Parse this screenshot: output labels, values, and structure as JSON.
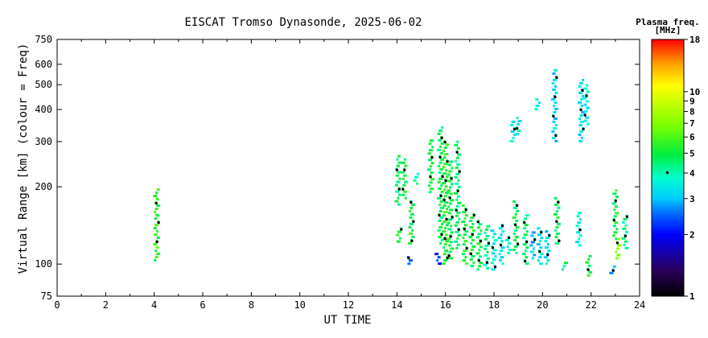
{
  "chart_data": {
    "type": "scatter",
    "title": "EISCAT Tromso Dynasonde, 2025-06-02",
    "xlabel": "UT TIME",
    "ylabel": "Virtual Range [km] (colour = Freq)",
    "xlim": [
      0,
      24
    ],
    "ylim": [
      75,
      750
    ],
    "yscale": "log",
    "x_ticks": [
      0,
      2,
      4,
      6,
      8,
      10,
      12,
      14,
      16,
      18,
      20,
      22,
      24
    ],
    "y_ticks": [
      75,
      100,
      200,
      300,
      400,
      500,
      600,
      750
    ],
    "colorbar": {
      "label": "Plasma freq.",
      "unit": "[MHz]",
      "scale": "log",
      "range": [
        1,
        18
      ],
      "ticks": [
        1,
        2,
        3,
        4,
        5,
        6,
        7,
        8,
        9,
        10,
        18
      ]
    },
    "series": [
      {
        "points": [
          {
            "x": 4.1,
            "y_min": 103,
            "y_max": 195,
            "f": 5.5
          },
          {
            "x": 14.05,
            "y_min": 170,
            "y_max": 265,
            "f": 4.6
          },
          {
            "x": 14.1,
            "y_min": 122,
            "y_max": 138,
            "f": 5.2
          },
          {
            "x": 14.3,
            "y_min": 180,
            "y_max": 260,
            "f": 5.0
          },
          {
            "x": 14.5,
            "y_min": 100,
            "y_max": 108,
            "f": 2.5
          },
          {
            "x": 14.6,
            "y_min": 120,
            "y_max": 175,
            "f": 5.0
          },
          {
            "x": 14.8,
            "y_min": 205,
            "y_max": 225,
            "f": 4.0
          },
          {
            "x": 15.4,
            "y_min": 190,
            "y_max": 310,
            "f": 5.0
          },
          {
            "x": 15.7,
            "y_min": 100,
            "y_max": 110,
            "f": 2.2
          },
          {
            "x": 15.8,
            "y_min": 120,
            "y_max": 340,
            "f": 4.8
          },
          {
            "x": 16.0,
            "y_min": 100,
            "y_max": 300,
            "f": 5.3
          },
          {
            "x": 16.2,
            "y_min": 105,
            "y_max": 250,
            "f": 5.0
          },
          {
            "x": 16.5,
            "y_min": 115,
            "y_max": 300,
            "f": 4.5
          },
          {
            "x": 16.8,
            "y_min": 100,
            "y_max": 170,
            "f": 5.2
          },
          {
            "x": 17.1,
            "y_min": 98,
            "y_max": 160,
            "f": 5.0
          },
          {
            "x": 17.4,
            "y_min": 95,
            "y_max": 150,
            "f": 4.8
          },
          {
            "x": 17.7,
            "y_min": 96,
            "y_max": 140,
            "f": 4.3
          },
          {
            "x": 18.0,
            "y_min": 95,
            "y_max": 135,
            "f": 3.5
          },
          {
            "x": 18.3,
            "y_min": 100,
            "y_max": 145,
            "f": 3.4
          },
          {
            "x": 18.6,
            "y_min": 110,
            "y_max": 130,
            "f": 3.6
          },
          {
            "x": 18.8,
            "y_min": 300,
            "y_max": 360,
            "f": 3.5
          },
          {
            "x": 18.9,
            "y_min": 110,
            "y_max": 175,
            "f": 4.8
          },
          {
            "x": 19.0,
            "y_min": 320,
            "y_max": 380,
            "f": 3.6
          },
          {
            "x": 19.3,
            "y_min": 100,
            "y_max": 155,
            "f": 4.5
          },
          {
            "x": 19.6,
            "y_min": 105,
            "y_max": 135,
            "f": 3.0
          },
          {
            "x": 19.8,
            "y_min": 400,
            "y_max": 440,
            "f": 3.6
          },
          {
            "x": 19.9,
            "y_min": 100,
            "y_max": 140,
            "f": 3.3
          },
          {
            "x": 20.2,
            "y_min": 100,
            "y_max": 135,
            "f": 3.2
          },
          {
            "x": 20.5,
            "y_min": 300,
            "y_max": 580,
            "f": 3.2
          },
          {
            "x": 20.6,
            "y_min": 120,
            "y_max": 185,
            "f": 4.8
          },
          {
            "x": 20.9,
            "y_min": 95,
            "y_max": 102,
            "f": 4.5
          },
          {
            "x": 21.5,
            "y_min": 118,
            "y_max": 160,
            "f": 3.5
          },
          {
            "x": 21.6,
            "y_min": 300,
            "y_max": 520,
            "f": 3.3
          },
          {
            "x": 21.8,
            "y_min": 350,
            "y_max": 500,
            "f": 3.5
          },
          {
            "x": 21.9,
            "y_min": 90,
            "y_max": 110,
            "f": 5.0
          },
          {
            "x": 22.9,
            "y_min": 92,
            "y_max": 98,
            "f": 3.0
          },
          {
            "x": 23.0,
            "y_min": 125,
            "y_max": 195,
            "f": 5.0
          },
          {
            "x": 23.1,
            "y_min": 105,
            "y_max": 125,
            "f": 7.5
          },
          {
            "x": 23.4,
            "y_min": 115,
            "y_max": 155,
            "f": 4.2
          }
        ]
      }
    ]
  }
}
